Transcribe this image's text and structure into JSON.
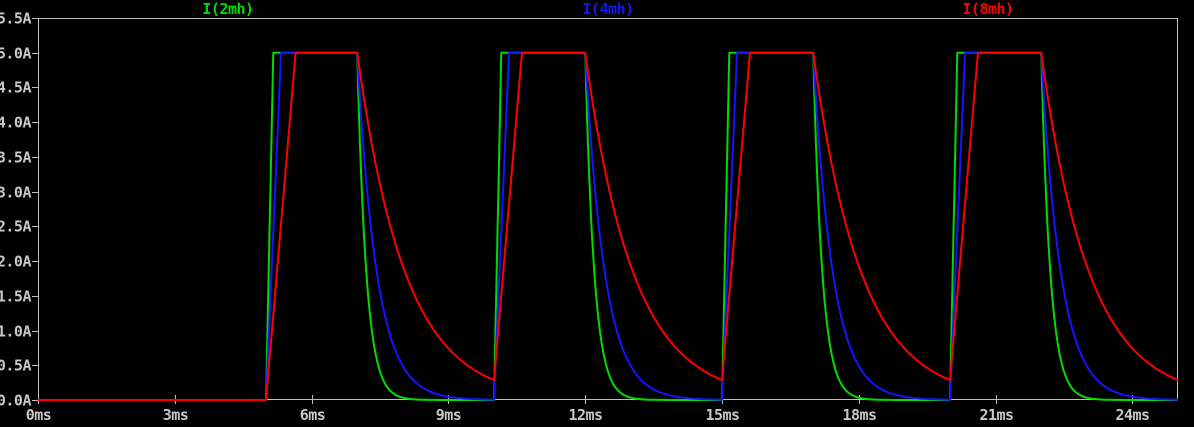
{
  "window": {
    "background_color": "#000000",
    "axis_line_color": "#bebebe",
    "axis_text_color": "#c8c8c8"
  },
  "chart_data": {
    "type": "line",
    "title": "",
    "description": "Transient simulation plot of inductor currents for three inductance values driven by a periodic pulse; current ramps to a 5 A plateau then decays exponentially, with rise slope and decay time constant proportional to inductance.",
    "x_axis": {
      "unit": "ms",
      "min": 0,
      "max": 25,
      "tick_interval": 3,
      "tick_labels": [
        "0ms",
        "3ms",
        "6ms",
        "9ms",
        "12ms",
        "15ms",
        "18ms",
        "21ms",
        "24ms"
      ],
      "grid": false
    },
    "y_axis": {
      "unit": "A",
      "min": 0,
      "max": 5.5,
      "tick_interval": 0.5,
      "tick_labels": [
        "0.0A",
        "0.5A",
        "1.0A",
        "1.5A",
        "2.0A",
        "2.5A",
        "3.0A",
        "3.5A",
        "4.0A",
        "4.5A",
        "5.0A",
        "5.5A"
      ],
      "grid": false
    },
    "legend": {
      "position": "top-centered-thirds",
      "entries": [
        {
          "label": "I(2mh)",
          "color": "#00dc00"
        },
        {
          "label": "I(4mh)",
          "color": "#1414ff"
        },
        {
          "label": "I(8mh)",
          "color": "#ff0000"
        }
      ]
    },
    "pulse_train": {
      "amplitude_a": 5.0,
      "first_rise_ms": 5.0,
      "on_time_ms": 2.0,
      "period_ms": 5.0,
      "pulse_count": 4,
      "plateau_a": 5.0,
      "baseline_a": 0.0
    },
    "series": [
      {
        "name": "I(2mh)",
        "inductance_mh": 2,
        "color": "#00dc00",
        "rise_time_ms": 0.16,
        "decay_tau_ms": 0.2
      },
      {
        "name": "I(4mh)",
        "inductance_mh": 4,
        "color": "#1414ff",
        "rise_time_ms": 0.33,
        "decay_tau_ms": 0.43
      },
      {
        "name": "I(8mh)",
        "inductance_mh": 8,
        "color": "#ff0000",
        "rise_time_ms": 0.65,
        "decay_tau_ms": 1.05
      }
    ],
    "key_values": {
      "rise_times_ms": [
        5,
        10,
        15,
        20
      ],
      "fall_times_ms": [
        7,
        12,
        17,
        22
      ],
      "residual_current_8mh_at_next_rise_a": 0.29
    }
  }
}
